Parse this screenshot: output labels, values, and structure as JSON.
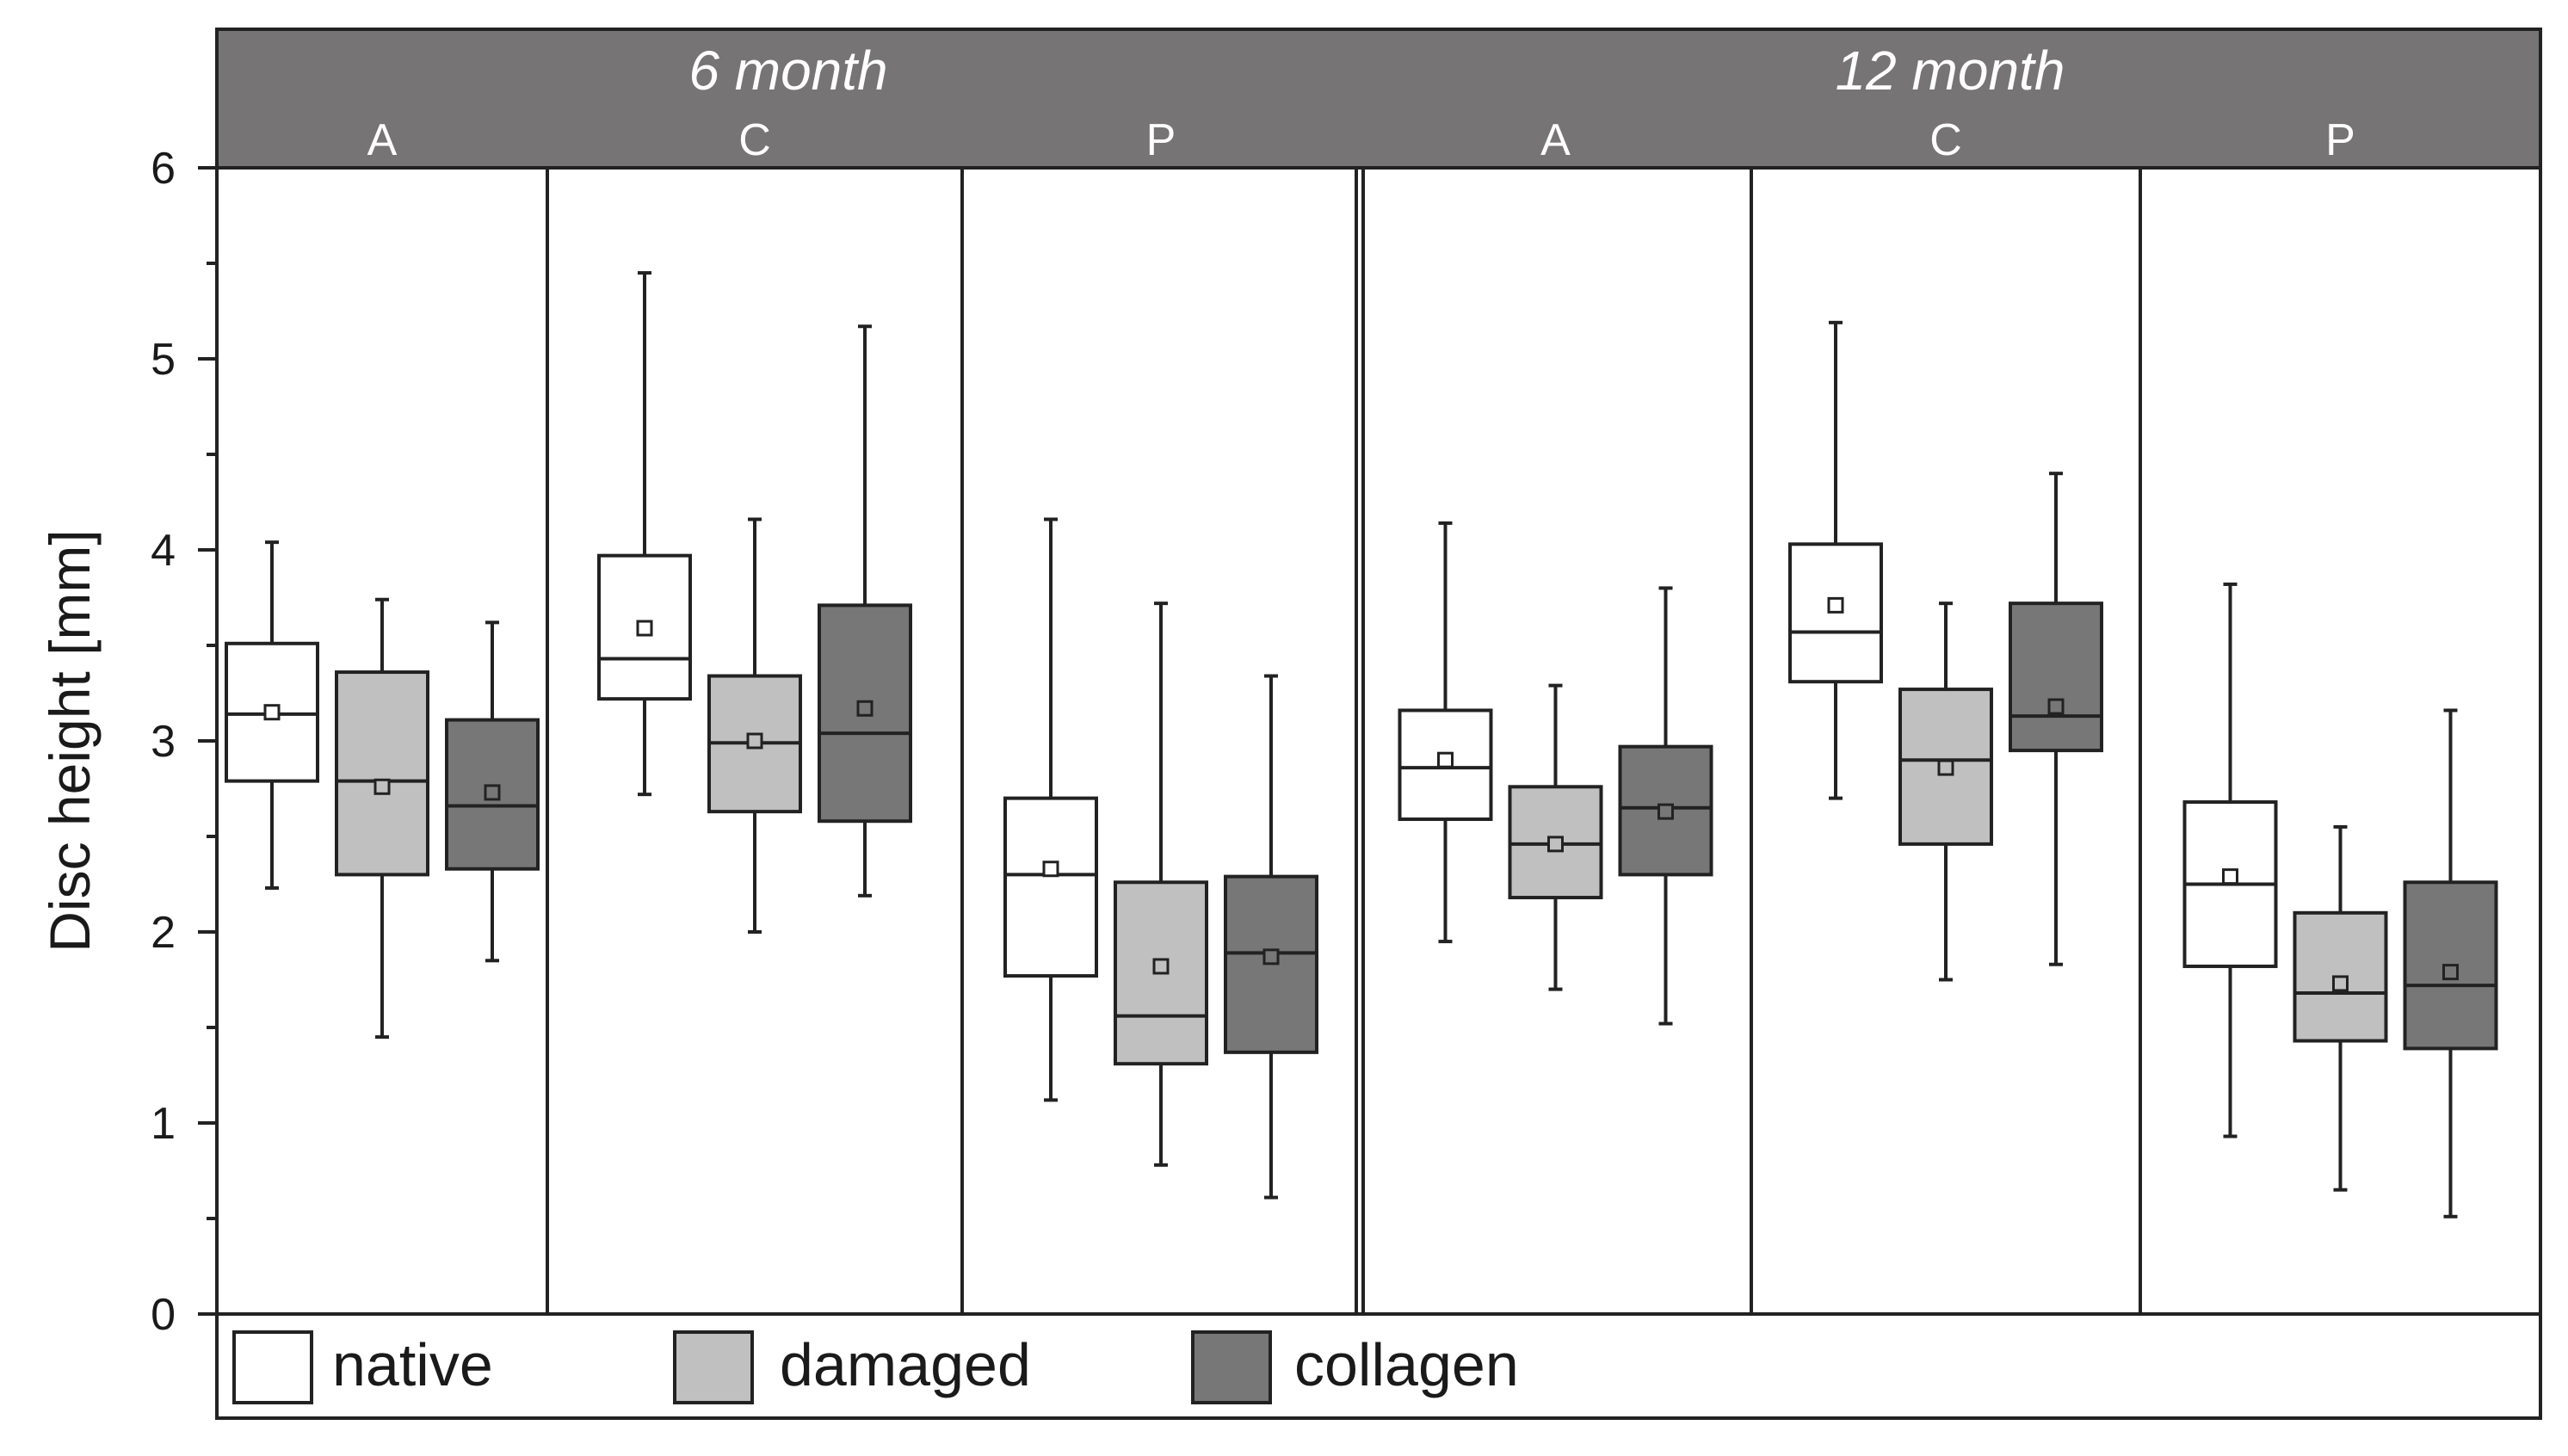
{
  "chart_data": {
    "type": "boxplot",
    "ylabel": "Disc height [mm]",
    "ylim": [
      0,
      6
    ],
    "yticks": [
      "0",
      "1",
      "2",
      "3",
      "4",
      "5",
      "6"
    ],
    "series": [
      {
        "name": "native",
        "color": "#ffffff"
      },
      {
        "name": "damaged",
        "color": "#c0c0c0"
      },
      {
        "name": "collagen",
        "color": "#777777"
      }
    ],
    "periods": [
      {
        "label": "6 month",
        "regions": [
          {
            "label": "A",
            "boxes": [
              {
                "series": "native",
                "min": 2.23,
                "q1": 2.79,
                "median": 3.14,
                "q3": 3.51,
                "max": 4.04,
                "mean": 3.15
              },
              {
                "series": "damaged",
                "min": 1.45,
                "q1": 2.3,
                "median": 2.79,
                "q3": 3.36,
                "max": 3.74,
                "mean": 2.76
              },
              {
                "series": "collagen",
                "min": 1.85,
                "q1": 2.33,
                "median": 2.66,
                "q3": 3.11,
                "max": 3.62,
                "mean": 2.73
              }
            ]
          },
          {
            "label": "C",
            "boxes": [
              {
                "series": "native",
                "min": 2.72,
                "q1": 3.22,
                "median": 3.43,
                "q3": 3.97,
                "max": 5.45,
                "mean": 3.59
              },
              {
                "series": "damaged",
                "min": 2.0,
                "q1": 2.63,
                "median": 2.99,
                "q3": 3.34,
                "max": 4.16,
                "mean": 3.0
              },
              {
                "series": "collagen",
                "min": 2.19,
                "q1": 2.58,
                "median": 3.04,
                "q3": 3.71,
                "max": 5.17,
                "mean": 3.17
              }
            ]
          },
          {
            "label": "P",
            "boxes": [
              {
                "series": "native",
                "min": 1.12,
                "q1": 1.77,
                "median": 2.3,
                "q3": 2.7,
                "max": 4.16,
                "mean": 2.33
              },
              {
                "series": "damaged",
                "min": 0.78,
                "q1": 1.31,
                "median": 1.56,
                "q3": 2.26,
                "max": 3.72,
                "mean": 1.82
              },
              {
                "series": "collagen",
                "min": 0.61,
                "q1": 1.37,
                "median": 1.89,
                "q3": 2.29,
                "max": 3.34,
                "mean": 1.87
              }
            ]
          }
        ]
      },
      {
        "label": "12 month",
        "regions": [
          {
            "label": "A",
            "boxes": [
              {
                "series": "native",
                "min": 1.95,
                "q1": 2.59,
                "median": 2.86,
                "q3": 3.16,
                "max": 4.14,
                "mean": 2.9
              },
              {
                "series": "damaged",
                "min": 1.7,
                "q1": 2.18,
                "median": 2.46,
                "q3": 2.76,
                "max": 3.29,
                "mean": 2.46
              },
              {
                "series": "collagen",
                "min": 1.52,
                "q1": 2.3,
                "median": 2.65,
                "q3": 2.97,
                "max": 3.8,
                "mean": 2.63
              }
            ]
          },
          {
            "label": "C",
            "boxes": [
              {
                "series": "native",
                "min": 2.7,
                "q1": 3.31,
                "median": 3.57,
                "q3": 4.03,
                "max": 5.19,
                "mean": 3.71
              },
              {
                "series": "damaged",
                "min": 1.75,
                "q1": 2.46,
                "median": 2.9,
                "q3": 3.27,
                "max": 3.72,
                "mean": 2.86
              },
              {
                "series": "collagen",
                "min": 1.83,
                "q1": 2.95,
                "median": 3.13,
                "q3": 3.72,
                "max": 4.4,
                "mean": 3.18
              }
            ]
          },
          {
            "label": "P",
            "boxes": [
              {
                "series": "native",
                "min": 0.93,
                "q1": 1.82,
                "median": 2.25,
                "q3": 2.68,
                "max": 3.82,
                "mean": 2.29
              },
              {
                "series": "damaged",
                "min": 0.65,
                "q1": 1.43,
                "median": 1.68,
                "q3": 2.1,
                "max": 2.55,
                "mean": 1.73
              },
              {
                "series": "collagen",
                "min": 0.51,
                "q1": 1.39,
                "median": 1.72,
                "q3": 2.26,
                "max": 3.16,
                "mean": 1.79
              }
            ]
          }
        ]
      }
    ],
    "legend": [
      "native",
      "damaged",
      "collagen"
    ],
    "legend_position": "bottom"
  }
}
